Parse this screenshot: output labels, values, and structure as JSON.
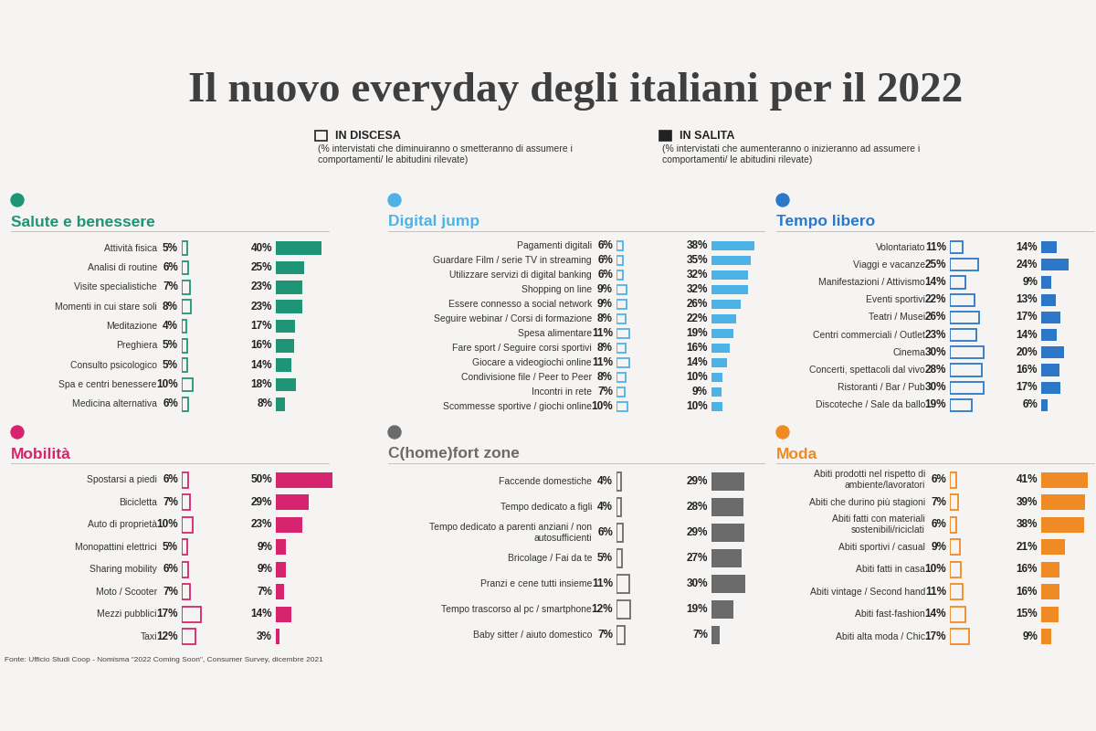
{
  "title": "Il nuovo everyday degli italiani per il 2022",
  "key": [
    {
      "name": "IN DISCESA",
      "type": "outline",
      "text": "(% intervistati che diminuiranno o smetteranno di assumere i comportamenti/ le abitudini rilevate)"
    },
    {
      "name": "IN SALITA",
      "type": "bar",
      "text": "(% intervistati che aumenteranno o inizieranno ad assumere i comportamenti/ le abitudini rilevate)"
    }
  ],
  "source": "Fonte: Ufficio Studi Coop - Nomisma \"2022 Coming Soon\", Consumer Survey, dicembre 2021",
  "chart_data": [
    {
      "type": "bar",
      "orientation": "horizontal",
      "title": "Salute e benessere",
      "color": "#1e9577",
      "data_labels": true,
      "tick_labels": false,
      "categories": [
        "Attività fisica",
        "Analisi di routine",
        "Visite specialistiche",
        "Momenti in cui stare soli",
        "Meditazione",
        "Preghiera",
        "Consulto psicologico",
        "Spa e centri benessere",
        "Medicina alternativa"
      ],
      "series": [
        {
          "name": "IN DISCESA",
          "type": "outline",
          "color": "#1e9577",
          "values": [
            5,
            6,
            7,
            8,
            4,
            5,
            5,
            10,
            6
          ],
          "value_labels": [
            "5%",
            "6%",
            "7%",
            "8%",
            "4%",
            "5%",
            "5%",
            "10%",
            "6%"
          ]
        },
        {
          "name": "IN SALITA",
          "type": "bar",
          "color": "#1e9577",
          "values": [
            40,
            25,
            23,
            23,
            17,
            16,
            14,
            18,
            8
          ],
          "value_labels": [
            "40%",
            "25%",
            "23%",
            "23%",
            "17%",
            "16%",
            "14%",
            "18%",
            "8%"
          ]
        }
      ]
    },
    {
      "type": "bar",
      "orientation": "horizontal",
      "title": "Digital jump",
      "color": "#4db3e6",
      "data_labels": true,
      "tick_labels": false,
      "categories": [
        "Pagamenti digitali",
        "Guardare Film / serie TV in streaming",
        "Utilizzare servizi di digital banking",
        "Shopping on line",
        "Essere connesso a social network",
        "Seguire webinar / Corsi di formazione",
        "Spesa alimentare",
        "Fare sport / Seguire corsi sportivi",
        "Giocare a videogiochi online",
        "Condivisione file / Peer to Peer",
        "Incontri in rete",
        "Scommesse sportive / giochi online"
      ],
      "series": [
        {
          "name": "IN DISCESA",
          "type": "outline",
          "color": "#4db3e6",
          "values": [
            6,
            6,
            6,
            9,
            9,
            8,
            11,
            8,
            11,
            8,
            7,
            10
          ],
          "value_labels": [
            "6%",
            "6%",
            "6%",
            "9%",
            "9%",
            "8%",
            "11%",
            "8%",
            "11%",
            "8%",
            "7%",
            "10%"
          ]
        },
        {
          "name": "IN SALITA",
          "type": "bar",
          "color": "#4db3e6",
          "values": [
            38,
            35,
            32,
            32,
            26,
            22,
            19,
            16,
            14,
            10,
            9,
            10
          ],
          "value_labels": [
            "38%",
            "35%",
            "32%",
            "32%",
            "26%",
            "22%",
            "19%",
            "16%",
            "14%",
            "10%",
            "9%",
            "10%"
          ]
        }
      ]
    },
    {
      "type": "bar",
      "orientation": "horizontal",
      "title": "Tempo libero",
      "color": "#2c78c7",
      "data_labels": true,
      "tick_labels": false,
      "categories": [
        "Volontariato",
        "Viaggi e vacanze",
        "Manifestazioni / Attivismo",
        "Eventi sportivi",
        "Teatri / Musei",
        "Centri commerciali / Outlet",
        "Cinema",
        "Concerti, spettacoli dal vivo",
        "Ristoranti / Bar / Pub",
        "Discoteche / Sale da ballo"
      ],
      "series": [
        {
          "name": "IN DISCESA",
          "type": "outline",
          "color": "#2c78c7",
          "values": [
            11,
            25,
            14,
            22,
            26,
            23,
            30,
            28,
            30,
            19
          ],
          "value_labels": [
            "11%",
            "25%",
            "14%",
            "22%",
            "26%",
            "23%",
            "30%",
            "28%",
            "30%",
            "19%"
          ]
        },
        {
          "name": "IN SALITA",
          "type": "bar",
          "color": "#2c78c7",
          "values": [
            14,
            24,
            9,
            13,
            17,
            14,
            20,
            16,
            17,
            6
          ],
          "value_labels": [
            "14%",
            "24%",
            "9%",
            "13%",
            "17%",
            "14%",
            "20%",
            "16%",
            "17%",
            "6%"
          ]
        }
      ]
    },
    {
      "type": "bar",
      "orientation": "horizontal",
      "title": "Mobilità",
      "color": "#d6246e",
      "data_labels": true,
      "tick_labels": false,
      "categories": [
        "Spostarsi a piedi",
        "Bicicletta",
        "Auto di proprietà",
        "Monopattini elettrici",
        "Sharing mobility",
        "Moto / Scooter",
        "Mezzi pubblici",
        "Taxi"
      ],
      "series": [
        {
          "name": "IN DISCESA",
          "type": "outline",
          "color": "#d6246e",
          "values": [
            6,
            7,
            10,
            5,
            6,
            7,
            17,
            12
          ],
          "value_labels": [
            "6%",
            "7%",
            "10%",
            "5%",
            "6%",
            "7%",
            "17%",
            "12%"
          ]
        },
        {
          "name": "IN SALITA",
          "type": "bar",
          "color": "#d6246e",
          "values": [
            50,
            29,
            23,
            9,
            9,
            7,
            14,
            3
          ],
          "value_labels": [
            "50%",
            "29%",
            "23%",
            "9%",
            "9%",
            "7%",
            "14%",
            "3%"
          ]
        }
      ]
    },
    {
      "type": "bar",
      "orientation": "horizontal",
      "title": "C(home)fort zone",
      "color": "#6b6b6b",
      "data_labels": true,
      "tick_labels": false,
      "categories": [
        "Faccende domestiche",
        "Tempo dedicato a figli",
        "Tempo dedicato a parenti anziani / non autosufficienti",
        "Bricolage / Fai da te",
        "Pranzi e cene tutti insieme",
        "Tempo trascorso al pc / smartphone",
        "Baby sitter / aiuto domestico"
      ],
      "series": [
        {
          "name": "IN DISCESA",
          "type": "outline",
          "color": "#6b6b6b",
          "values": [
            4,
            4,
            6,
            5,
            11,
            12,
            7
          ],
          "value_labels": [
            "4%",
            "4%",
            "6%",
            "5%",
            "11%",
            "12%",
            "7%"
          ]
        },
        {
          "name": "IN SALITA",
          "type": "bar",
          "color": "#6b6b6b",
          "values": [
            29,
            28,
            29,
            27,
            30,
            19,
            7
          ],
          "value_labels": [
            "29%",
            "28%",
            "29%",
            "27%",
            "30%",
            "19%",
            "7%"
          ]
        }
      ]
    },
    {
      "type": "bar",
      "orientation": "horizontal",
      "title": "Moda",
      "color": "#f08a24",
      "data_labels": true,
      "tick_labels": false,
      "categories": [
        "Abiti prodotti nel rispetto di ambiente/lavoratori",
        "Abiti che durino più stagioni",
        "Abiti fatti con materiali sostenibili/riciclati",
        "Abiti sportivi / casual",
        "Abiti fatti in casa",
        "Abiti vintage / Second hand",
        "Abiti fast-fashion",
        "Abiti alta moda / Chic"
      ],
      "series": [
        {
          "name": "IN DISCESA",
          "type": "outline",
          "color": "#f08a24",
          "values": [
            6,
            7,
            6,
            9,
            10,
            11,
            14,
            17
          ],
          "value_labels": [
            "6%",
            "7%",
            "6%",
            "9%",
            "10%",
            "11%",
            "14%",
            "17%"
          ]
        },
        {
          "name": "IN SALITA",
          "type": "bar",
          "color": "#f08a24",
          "values": [
            41,
            39,
            38,
            21,
            16,
            16,
            15,
            9
          ],
          "value_labels": [
            "41%",
            "39%",
            "38%",
            "21%",
            "16%",
            "16%",
            "15%",
            "9%"
          ]
        }
      ]
    }
  ]
}
